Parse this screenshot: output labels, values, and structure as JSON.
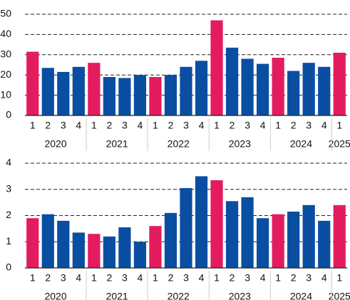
{
  "chart_data": [
    {
      "type": "bar",
      "categories": [
        "1",
        "2",
        "3",
        "4",
        "1",
        "2",
        "3",
        "4",
        "1",
        "2",
        "3",
        "4",
        "1",
        "2",
        "3",
        "4",
        "1",
        "2",
        "3",
        "4",
        "1"
      ],
      "groups": [
        "2020",
        "2021",
        "2022",
        "2023",
        "2024",
        "2025"
      ],
      "values": [
        31.5,
        23.5,
        21.5,
        24,
        26,
        19,
        18.5,
        20,
        19,
        20,
        24,
        27,
        47,
        33.5,
        28,
        25.5,
        28.5,
        22,
        26,
        24,
        31
      ],
      "colors": [
        "#e31c5f",
        "#0a4ea2",
        "#0a4ea2",
        "#0a4ea2",
        "#e31c5f",
        "#0a4ea2",
        "#0a4ea2",
        "#0a4ea2",
        "#e31c5f",
        "#0a4ea2",
        "#0a4ea2",
        "#0a4ea2",
        "#e31c5f",
        "#0a4ea2",
        "#0a4ea2",
        "#0a4ea2",
        "#e31c5f",
        "#0a4ea2",
        "#0a4ea2",
        "#0a4ea2",
        "#e31c5f"
      ],
      "ylim": [
        0,
        50
      ],
      "yticks": [
        0,
        10,
        20,
        30,
        40,
        50
      ],
      "grid": true
    },
    {
      "type": "bar",
      "categories": [
        "1",
        "2",
        "3",
        "4",
        "1",
        "2",
        "3",
        "4",
        "1",
        "2",
        "3",
        "4",
        "1",
        "2",
        "3",
        "4",
        "1",
        "2",
        "3",
        "4",
        "1"
      ],
      "groups": [
        "2020",
        "2021",
        "2022",
        "2023",
        "2024",
        "2025"
      ],
      "values": [
        1.9,
        2.05,
        1.8,
        1.35,
        1.3,
        1.2,
        1.55,
        1.0,
        1.6,
        2.1,
        3.05,
        3.5,
        3.35,
        2.55,
        2.7,
        1.9,
        2.05,
        2.15,
        2.4,
        1.8,
        2.4
      ],
      "colors": [
        "#e31c5f",
        "#0a4ea2",
        "#0a4ea2",
        "#0a4ea2",
        "#e31c5f",
        "#0a4ea2",
        "#0a4ea2",
        "#0a4ea2",
        "#e31c5f",
        "#0a4ea2",
        "#0a4ea2",
        "#0a4ea2",
        "#e31c5f",
        "#0a4ea2",
        "#0a4ea2",
        "#0a4ea2",
        "#e31c5f",
        "#0a4ea2",
        "#0a4ea2",
        "#0a4ea2",
        "#e31c5f"
      ],
      "ylim": [
        0,
        4
      ],
      "yticks": [
        0,
        1,
        2,
        3,
        4
      ],
      "grid": true
    }
  ]
}
